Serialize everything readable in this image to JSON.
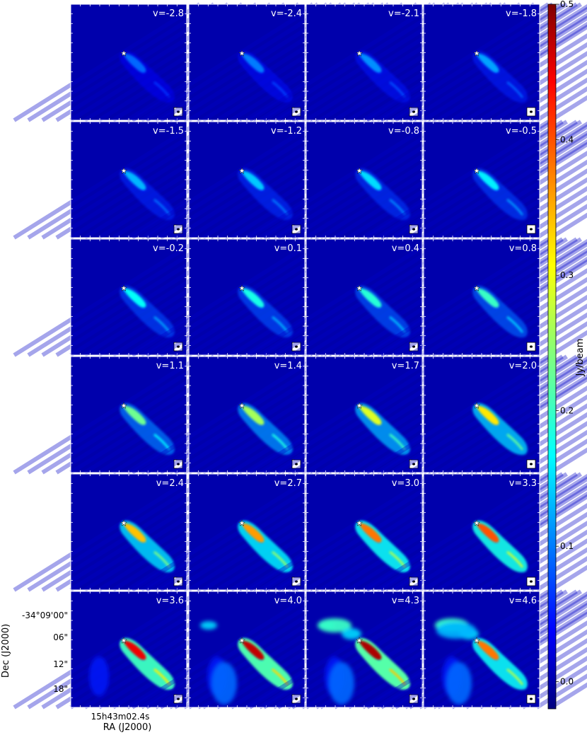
{
  "chart_data": {
    "type": "heatmap",
    "description_channels_layout": "6 rows x 4 columns channel maps",
    "velocities": [
      "-2.8",
      "-2.4",
      "-2.1",
      "-1.8",
      "-1.5",
      "-1.2",
      "-0.8",
      "-0.5",
      "-0.2",
      "0.1",
      "0.4",
      "0.8",
      "1.1",
      "1.4",
      "1.7",
      "2.0",
      "2.4",
      "2.7",
      "3.0",
      "3.3",
      "3.6",
      "4.0",
      "4.3",
      "4.6"
    ],
    "velocity_prefix": "v=",
    "peak_intensity": [
      0.09,
      0.1,
      0.11,
      0.12,
      0.13,
      0.14,
      0.15,
      0.16,
      0.17,
      0.18,
      0.19,
      0.2,
      0.23,
      0.26,
      0.29,
      0.32,
      0.34,
      0.36,
      0.38,
      0.4,
      0.45,
      0.47,
      0.48,
      0.38
    ],
    "colorbar": {
      "label": "Jy/beam",
      "range": [
        -0.02,
        0.5
      ],
      "ticks": [
        "0.0",
        "0.1",
        "0.2",
        "0.3",
        "0.4",
        "0.5"
      ],
      "tick_values": [
        0.0,
        0.1,
        0.2,
        0.3,
        0.4,
        0.5
      ],
      "colormap": "jet"
    },
    "ylabel": "Dec (J2000)",
    "xlabel": "RA (J2000)",
    "ytick_labels": [
      "-34°09'00\"",
      "06\"",
      "12\"",
      "18\""
    ],
    "xtick_label": "15h43m02.4s",
    "markers": {
      "source": "star",
      "beam": "white box with ellipse"
    }
  }
}
